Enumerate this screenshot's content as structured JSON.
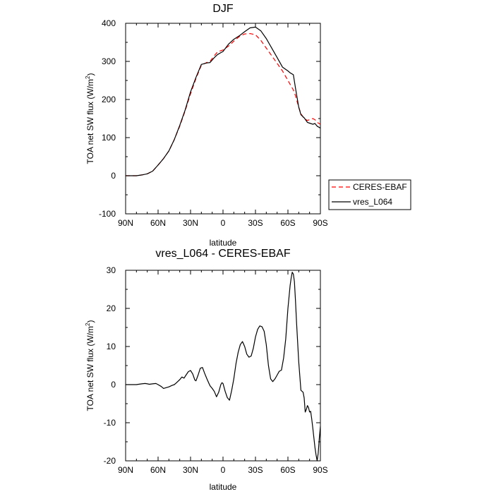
{
  "chart_data": [
    {
      "type": "line",
      "title": "DJF",
      "xlabel": "latitude",
      "ylabel_text": "TOA net SW flux (W/m",
      "ylabel_sup": "2",
      "ylabel_close": ")",
      "xlim": [
        90,
        -90
      ],
      "ylim": [
        -100,
        400
      ],
      "xticks": [
        {
          "value": 90,
          "label": "90N"
        },
        {
          "value": 60,
          "label": "60N"
        },
        {
          "value": 30,
          "label": "30N"
        },
        {
          "value": 0,
          "label": "0"
        },
        {
          "value": -30,
          "label": "30S"
        },
        {
          "value": -60,
          "label": "60S"
        },
        {
          "value": -90,
          "label": "90S"
        }
      ],
      "yticks": [
        {
          "value": -100,
          "label": "-100"
        },
        {
          "value": 0,
          "label": "0"
        },
        {
          "value": 100,
          "label": "100"
        },
        {
          "value": 200,
          "label": "200"
        },
        {
          "value": 300,
          "label": "300"
        },
        {
          "value": 400,
          "label": "400"
        }
      ],
      "legend": {
        "placement": "right-outside"
      },
      "series": [
        {
          "name": "CERES-EBAF",
          "color": "#ff0000",
          "dash": "dashed",
          "x": [
            90,
            85,
            80,
            75,
            70,
            65,
            60,
            55,
            50,
            45,
            40,
            35,
            30,
            25,
            20,
            15,
            12,
            8,
            5,
            2,
            0,
            -5,
            -10,
            -15,
            -20,
            -25,
            -30,
            -35,
            -40,
            -45,
            -50,
            -55,
            -60,
            -62,
            -65,
            -67,
            -70,
            -72,
            -75,
            -78,
            -80,
            -83,
            -85,
            -87,
            -90
          ],
          "y": [
            0,
            0,
            0,
            2,
            5,
            12,
            28,
            45,
            65,
            95,
            130,
            170,
            215,
            255,
            290,
            297,
            300,
            315,
            325,
            328,
            330,
            340,
            353,
            365,
            372,
            373,
            370,
            355,
            335,
            315,
            295,
            275,
            250,
            240,
            225,
            210,
            180,
            163,
            150,
            145,
            147,
            150,
            147,
            140,
            135
          ]
        },
        {
          "name": "vres_L064",
          "color": "#000000",
          "dash": "solid",
          "x": [
            90,
            85,
            80,
            75,
            70,
            65,
            60,
            55,
            50,
            45,
            40,
            35,
            30,
            25,
            20,
            15,
            12,
            8,
            5,
            2,
            0,
            -5,
            -10,
            -15,
            -20,
            -25,
            -30,
            -35,
            -40,
            -45,
            -50,
            -55,
            -60,
            -62,
            -65,
            -67,
            -70,
            -72,
            -75,
            -78,
            -80,
            -83,
            -85,
            -87,
            -90
          ],
          "y": [
            0,
            0,
            0,
            2,
            5,
            12,
            28,
            45,
            65,
            95,
            132,
            172,
            220,
            258,
            292,
            296,
            297,
            310,
            318,
            323,
            326,
            345,
            358,
            367,
            378,
            388,
            390,
            380,
            360,
            335,
            310,
            285,
            275,
            270,
            265,
            230,
            180,
            160,
            152,
            140,
            138,
            135,
            137,
            130,
            125
          ]
        }
      ]
    },
    {
      "type": "line",
      "title": "vres_L064 - CERES-EBAF",
      "xlabel": "latitude",
      "ylabel_text": "TOA net SW flux (W/m",
      "ylabel_sup": "2",
      "ylabel_close": ")",
      "xlim": [
        90,
        -90
      ],
      "ylim": [
        -20,
        30
      ],
      "xticks": [
        {
          "value": 90,
          "label": "90N"
        },
        {
          "value": 60,
          "label": "60N"
        },
        {
          "value": 30,
          "label": "30N"
        },
        {
          "value": 0,
          "label": "0"
        },
        {
          "value": -30,
          "label": "30S"
        },
        {
          "value": -60,
          "label": "60S"
        },
        {
          "value": -90,
          "label": "90S"
        }
      ],
      "yticks": [
        {
          "value": -20,
          "label": "-20"
        },
        {
          "value": -10,
          "label": "-10"
        },
        {
          "value": 0,
          "label": "0"
        },
        {
          "value": 10,
          "label": "10"
        },
        {
          "value": 20,
          "label": "20"
        },
        {
          "value": 30,
          "label": "30"
        }
      ],
      "series": [
        {
          "color": "#000000",
          "dash": "solid",
          "x": [
            90,
            85,
            80,
            78,
            75,
            72,
            70,
            68,
            65,
            62,
            60,
            57,
            55,
            50,
            47,
            45,
            43,
            40,
            38,
            36,
            34,
            32,
            30,
            28,
            26,
            25,
            23,
            21,
            19,
            17,
            15,
            13,
            12,
            10,
            8,
            6,
            4,
            2,
            1,
            0,
            -2,
            -4,
            -6,
            -8,
            -10,
            -12,
            -14,
            -16,
            -18,
            -20,
            -22,
            -24,
            -26,
            -28,
            -30,
            -32,
            -34,
            -36,
            -38,
            -40,
            -42,
            -44,
            -46,
            -48,
            -50,
            -52,
            -54,
            -56,
            -58,
            -60,
            -62,
            -63,
            -64,
            -65,
            -66,
            -67,
            -68,
            -70,
            -72,
            -74,
            -75,
            -76,
            -77,
            -78,
            -79,
            -80,
            -81,
            -82,
            -83,
            -84,
            -85,
            -86,
            -87,
            -88,
            -89,
            -90
          ],
          "y": [
            0,
            0,
            0,
            0.1,
            0.2,
            0.3,
            0.2,
            0.1,
            0.2,
            0.3,
            0,
            -0.5,
            -1,
            -0.6,
            -0.2,
            0,
            0.5,
            1.3,
            2.0,
            1.7,
            2.6,
            3.4,
            3.7,
            2.8,
            1.2,
            1.0,
            2.5,
            4.3,
            4.5,
            3.0,
            1.6,
            0.3,
            -0.3,
            -1.0,
            -1.8,
            -3.2,
            -2.0,
            0.0,
            0.5,
            0.3,
            -1.8,
            -3.4,
            -4.1,
            -1.5,
            1.5,
            5.5,
            8.5,
            10.5,
            11.3,
            10.0,
            8.0,
            7.2,
            7.5,
            9.5,
            12.5,
            14.5,
            15.4,
            15.2,
            14.0,
            10.5,
            5.0,
            1.5,
            0.8,
            1.5,
            2.5,
            3.5,
            3.8,
            7.0,
            12.0,
            20.0,
            26.0,
            28.0,
            29.5,
            29.0,
            27.0,
            22.0,
            16.0,
            6.0,
            -1.5,
            -2.0,
            -3.5,
            -7.2,
            -6.5,
            -5.5,
            -6.0,
            -7.2,
            -7.0,
            -9.0,
            -11.5,
            -14.0,
            -16.5,
            -18.5,
            -20.0,
            -18.0,
            -14.0,
            -11.0
          ]
        }
      ]
    }
  ],
  "legend_entries": [
    {
      "label": "CERES-EBAF",
      "color": "#ff0000",
      "dash": "dashed"
    },
    {
      "label": "vres_L064",
      "color": "#000000",
      "dash": "solid"
    }
  ]
}
